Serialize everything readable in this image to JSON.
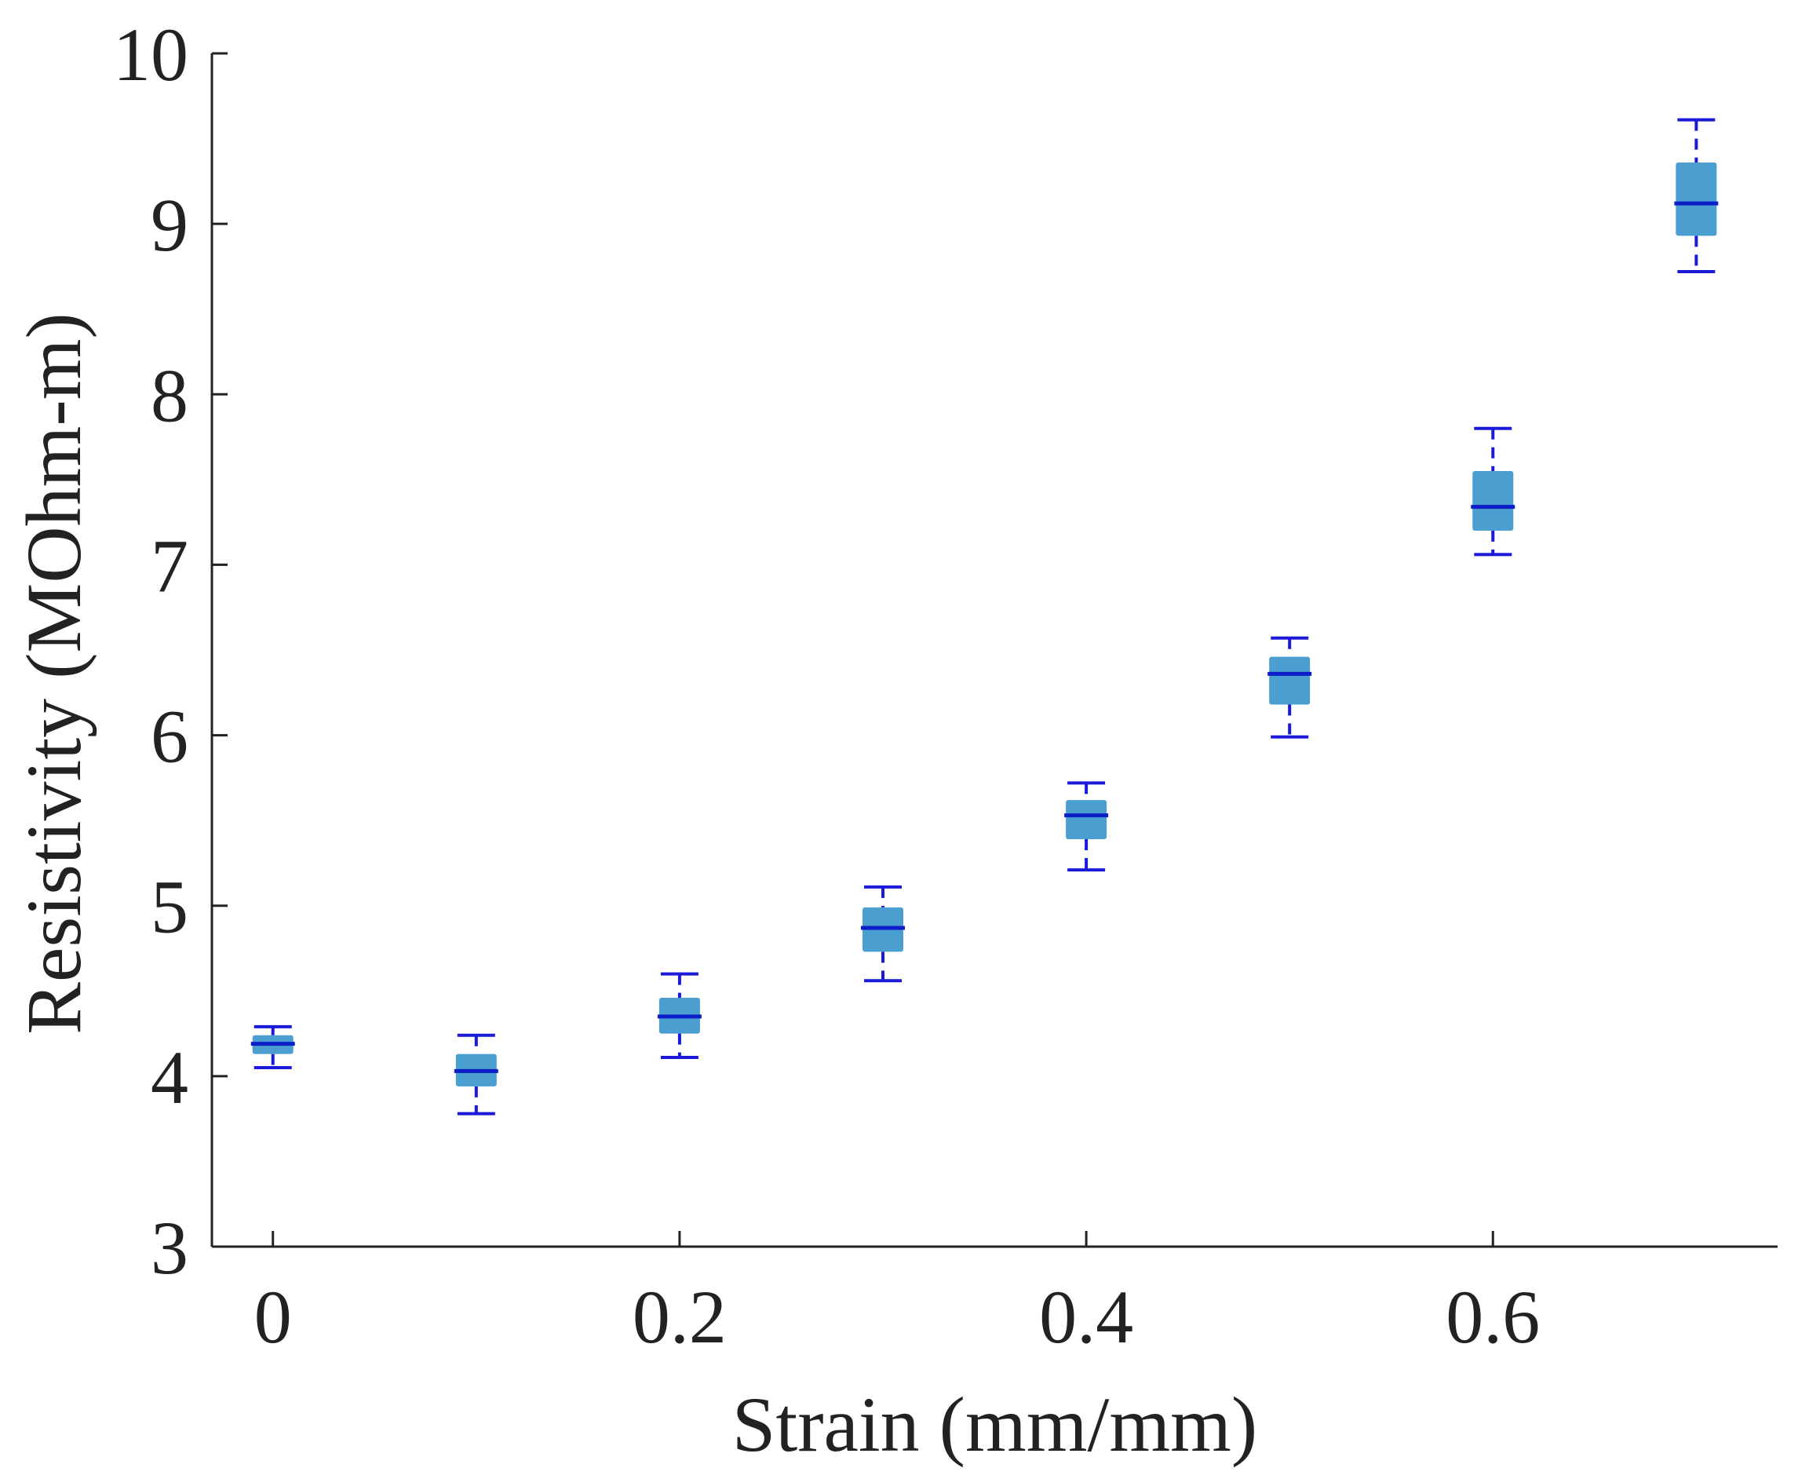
{
  "chart_data": {
    "type": "boxplot",
    "title": "",
    "xlabel": "Strain (mm/mm)",
    "ylabel": "Resistivity (MOhm-m)",
    "xlim": [
      -0.03,
      0.74
    ],
    "ylim": [
      3,
      10
    ],
    "xticks": [
      0,
      0.2,
      0.4,
      0.6
    ],
    "xtick_labels": [
      "0",
      "0.2",
      "0.4",
      "0.6"
    ],
    "yticks": [
      3,
      4,
      5,
      6,
      7,
      8,
      9,
      10
    ],
    "ytick_labels": [
      "3",
      "4",
      "5",
      "6",
      "7",
      "8",
      "9",
      "10"
    ],
    "grid": false,
    "box_color": "#4a9fd0",
    "median_color": "#0d1ec8",
    "whisker_color": "#1a1ad8",
    "axis_color": "#222222",
    "boxes": [
      {
        "x": 0.0,
        "whisker_low": 4.05,
        "q1": 4.13,
        "median": 4.19,
        "q3": 4.24,
        "whisker_high": 4.29
      },
      {
        "x": 0.1,
        "whisker_low": 3.78,
        "q1": 3.94,
        "median": 4.03,
        "q3": 4.13,
        "whisker_high": 4.24
      },
      {
        "x": 0.2,
        "whisker_low": 4.11,
        "q1": 4.25,
        "median": 4.35,
        "q3": 4.46,
        "whisker_high": 4.6
      },
      {
        "x": 0.3,
        "whisker_low": 4.56,
        "q1": 4.73,
        "median": 4.87,
        "q3": 4.99,
        "whisker_high": 5.11
      },
      {
        "x": 0.4,
        "whisker_low": 5.21,
        "q1": 5.39,
        "median": 5.53,
        "q3": 5.62,
        "whisker_high": 5.72
      },
      {
        "x": 0.5,
        "whisker_low": 5.99,
        "q1": 6.18,
        "median": 6.36,
        "q3": 6.46,
        "whisker_high": 6.57
      },
      {
        "x": 0.6,
        "whisker_low": 7.06,
        "q1": 7.2,
        "median": 7.34,
        "q3": 7.55,
        "whisker_high": 7.8
      },
      {
        "x": 0.7,
        "whisker_low": 8.72,
        "q1": 8.93,
        "median": 9.12,
        "q3": 9.36,
        "whisker_high": 9.61
      }
    ]
  }
}
